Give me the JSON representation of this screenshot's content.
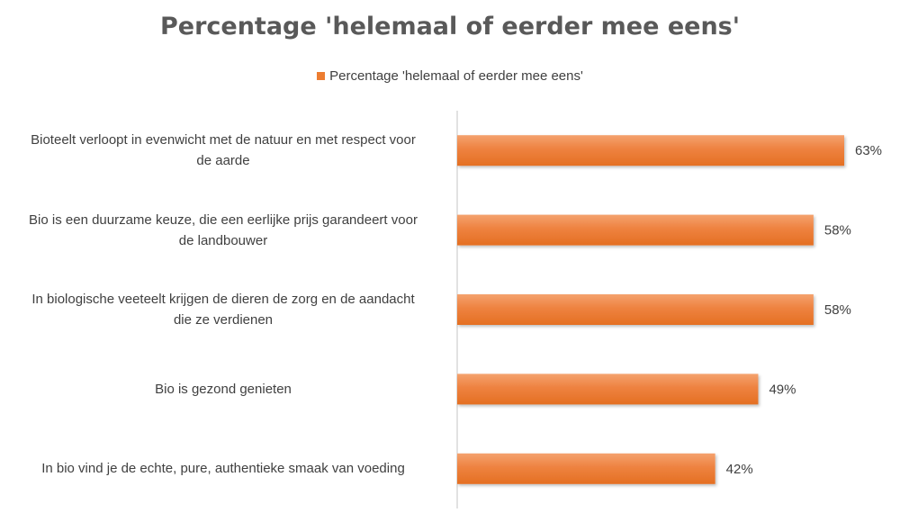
{
  "chart_data": {
    "type": "bar",
    "orientation": "horizontal",
    "title": "Percentage 'helemaal of eerder mee eens'",
    "legend": {
      "position": "top",
      "entries": [
        "Percentage 'helemaal of eerder mee eens'"
      ]
    },
    "categories": [
      "Bioteelt verloopt in evenwicht met de natuur en met respect voor de aarde",
      "Bio is een duurzame keuze, die een eerlijke prijs garandeert voor de landbouwer",
      "In biologische veeteelt krijgen de dieren de zorg en de aandacht die ze verdienen",
      "Bio is gezond genieten",
      "In bio vind je de echte, pure, authentieke smaak van voeding"
    ],
    "series": [
      {
        "name": "Percentage 'helemaal of eerder mee eens'",
        "values": [
          63,
          58,
          58,
          49,
          42
        ],
        "labels": [
          "63%",
          "58%",
          "58%",
          "49%",
          "42%"
        ],
        "color": "#ED7D31"
      }
    ],
    "grid": false
  }
}
